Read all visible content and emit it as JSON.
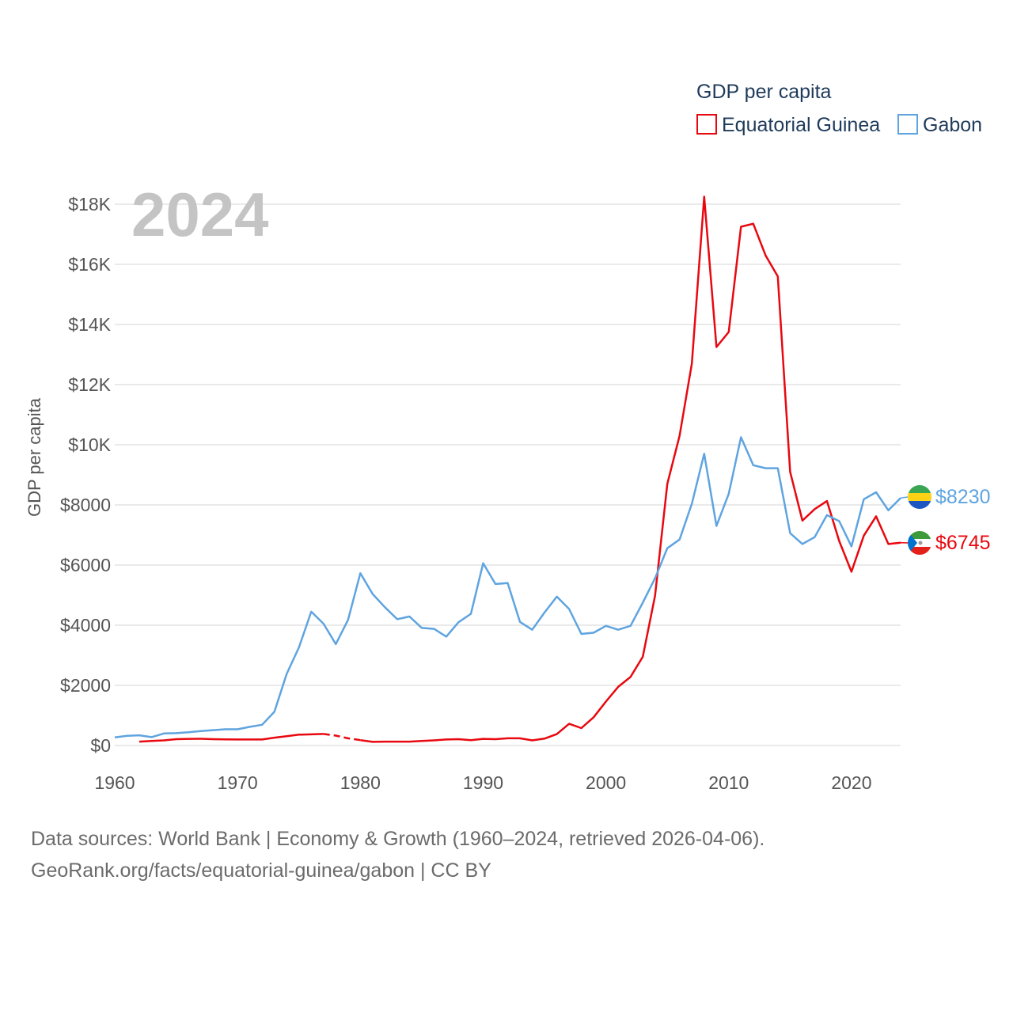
{
  "chart_data": {
    "type": "line",
    "title": "GDP per capita",
    "current_year": "2024",
    "xlabel": "",
    "ylabel": "GDP per capita",
    "xlim": [
      1960,
      2024
    ],
    "ylim": [
      0,
      18000
    ],
    "x_ticks": [
      1960,
      1970,
      1980,
      1990,
      2000,
      2010,
      2020
    ],
    "x_tick_labels": [
      "1960",
      "1970",
      "1980",
      "1990",
      "2000",
      "2010",
      "2020"
    ],
    "y_ticks": [
      0,
      2000,
      4000,
      6000,
      8000,
      10000,
      12000,
      14000,
      16000,
      18000
    ],
    "y_tick_labels": [
      "$0",
      "$2000",
      "$4000",
      "$6000",
      "$8000",
      "$10K",
      "$12K",
      "$14K",
      "$16K",
      "$18K"
    ],
    "grid": true,
    "legend_position": "top-right",
    "series": [
      {
        "name": "Equatorial Guinea",
        "color": "#e8080f",
        "end_label": "$6745",
        "gap": [
          1977,
          1980
        ],
        "x": [
          1962,
          1963,
          1964,
          1965,
          1966,
          1967,
          1968,
          1969,
          1970,
          1971,
          1972,
          1973,
          1974,
          1975,
          1976,
          1977,
          1978,
          1979,
          1980,
          1981,
          1982,
          1983,
          1984,
          1985,
          1986,
          1987,
          1988,
          1989,
          1990,
          1991,
          1992,
          1993,
          1994,
          1995,
          1996,
          1997,
          1998,
          1999,
          2000,
          2001,
          2002,
          2003,
          2004,
          2005,
          2006,
          2007,
          2008,
          2009,
          2010,
          2011,
          2012,
          2013,
          2014,
          2015,
          2016,
          2017,
          2018,
          2019,
          2020,
          2021,
          2022,
          2023,
          2024
        ],
        "values": [
          130,
          150,
          170,
          210,
          220,
          225,
          210,
          205,
          200,
          200,
          200,
          260,
          310,
          360,
          370,
          385,
          330,
          240,
          180,
          120,
          130,
          130,
          130,
          150,
          170,
          200,
          210,
          180,
          220,
          210,
          240,
          240,
          170,
          230,
          380,
          720,
          580,
          940,
          1460,
          1950,
          2280,
          2950,
          4980,
          8700,
          10300,
          12700,
          18250,
          13250,
          13750,
          17250,
          17350,
          16300,
          15600,
          9100,
          7480,
          7860,
          8130,
          6800,
          5780,
          6980,
          7620,
          6700,
          6745
        ]
      },
      {
        "name": "Gabon",
        "color": "#5fa4e0",
        "end_label": "$8230",
        "x": [
          1960,
          1961,
          1962,
          1963,
          1964,
          1965,
          1966,
          1967,
          1968,
          1969,
          1970,
          1971,
          1972,
          1973,
          1974,
          1975,
          1976,
          1977,
          1978,
          1979,
          1980,
          1981,
          1982,
          1983,
          1984,
          1985,
          1986,
          1987,
          1988,
          1989,
          1990,
          1991,
          1992,
          1993,
          1994,
          1995,
          1996,
          1997,
          1998,
          1999,
          2000,
          2001,
          2002,
          2003,
          2004,
          2005,
          2006,
          2007,
          2008,
          2009,
          2010,
          2011,
          2012,
          2013,
          2014,
          2015,
          2016,
          2017,
          2018,
          2019,
          2020,
          2021,
          2022,
          2023,
          2024
        ],
        "values": [
          270,
          320,
          340,
          280,
          400,
          410,
          440,
          480,
          510,
          540,
          540,
          620,
          690,
          1120,
          2380,
          3260,
          4450,
          4050,
          3370,
          4180,
          5730,
          5040,
          4600,
          4200,
          4290,
          3910,
          3880,
          3620,
          4100,
          4380,
          6060,
          5370,
          5400,
          4110,
          3850,
          4420,
          4950,
          4540,
          3710,
          3750,
          3980,
          3850,
          3980,
          4750,
          5560,
          6560,
          6850,
          8040,
          9700,
          7300,
          8370,
          10250,
          9320,
          9220,
          9220,
          7060,
          6700,
          6930,
          7660,
          7460,
          6620,
          8190,
          8420,
          7820,
          8230
        ]
      }
    ]
  },
  "footer": {
    "line1": "Data sources: World Bank | Economy & Growth (1960–2024, retrieved 2026-04-06).",
    "line2": "GeoRank.org/facts/equatorial-guinea/gabon | CC BY"
  }
}
